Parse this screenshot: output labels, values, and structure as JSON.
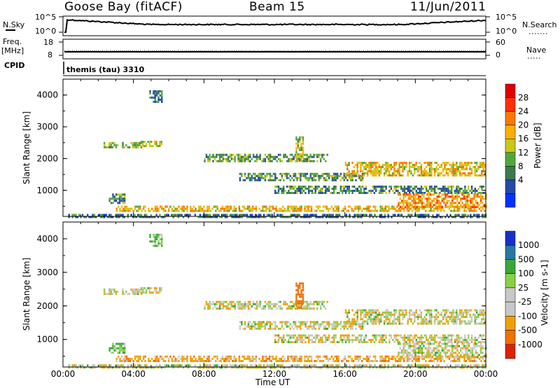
{
  "header": {
    "station": "Goose Bay (fitACF)",
    "beam": "Beam 15",
    "date": "11/Jun/2011"
  },
  "noise_panel": {
    "left_label": "N.Sky",
    "right_label": "N.Search",
    "left_ticks": [
      "10^5",
      "10^0"
    ],
    "right_ticks": [
      "10^5",
      "10^0"
    ]
  },
  "freq_panel": {
    "left_label_1": "Freq.",
    "left_label_2": "[MHz]",
    "right_label": "Nave",
    "left_ticks": [
      "18",
      "8"
    ],
    "right_ticks": [
      "60",
      "0"
    ]
  },
  "cpid_panel": {
    "label": "CPID",
    "text": "themis (tau) 3310"
  },
  "power_panel": {
    "ylabel": "Slant Range [km]",
    "yticks": [
      "4000",
      "3000",
      "2000",
      "1000"
    ],
    "colorbar_label": "Power [dB]",
    "colorbar_ticks": [
      "28",
      "24",
      "20",
      "16",
      "12",
      "8",
      "4"
    ],
    "colors": [
      "#0033ff",
      "#2848a8",
      "#3c7850",
      "#50a83c",
      "#c8c818",
      "#ffb000",
      "#ff7800",
      "#ff3000",
      "#e00000"
    ]
  },
  "velocity_panel": {
    "ylabel": "Slant Range [km]",
    "yticks": [
      "4000",
      "3000",
      "2000",
      "1000"
    ],
    "colorbar_label": "Velocity [m s-1]",
    "colorbar_ticks": [
      "1000",
      "500",
      "100",
      "25",
      "-25",
      "-100",
      "-500",
      "-1000"
    ],
    "colors": [
      "#1830c8",
      "#2878a0",
      "#38a838",
      "#88d048",
      "#c8c8c8",
      "#c8c8c8",
      "#f0a000",
      "#f07000",
      "#e02000"
    ]
  },
  "xaxis": {
    "label": "Time UT",
    "ticks": [
      "00:00",
      "04:00",
      "08:00",
      "12:00",
      "16:00",
      "20:00",
      "00:00"
    ]
  },
  "chart_data": {
    "type": "heatmap",
    "panels": [
      "power",
      "velocity"
    ],
    "x_range_hours": [
      0,
      24
    ],
    "y_range_km": [
      180,
      4500
    ],
    "echo_bands": [
      {
        "t0": 2.3,
        "t1": 4.4,
        "r0": 2380,
        "r1": 2520,
        "power": 14,
        "velocity": 0
      },
      {
        "t0": 4.4,
        "t1": 5.6,
        "r0": 2420,
        "r1": 2560,
        "power": 16,
        "velocity": 0
      },
      {
        "t0": 4.9,
        "t1": 5.6,
        "r0": 3800,
        "r1": 4150,
        "power": 8,
        "velocity": 50
      },
      {
        "t0": 3.0,
        "t1": 24.0,
        "r0": 380,
        "r1": 520,
        "power": 18,
        "velocity": -60
      },
      {
        "t0": 0.3,
        "t1": 24.0,
        "r0": 180,
        "r1": 260,
        "power": 8,
        "velocity": 0
      },
      {
        "t0": 2.6,
        "t1": 3.5,
        "r0": 600,
        "r1": 900,
        "power": 10,
        "velocity": 80
      },
      {
        "t0": 8.0,
        "t1": 15.0,
        "r0": 1950,
        "r1": 2150,
        "power": 12,
        "velocity": 0
      },
      {
        "t0": 10.0,
        "t1": 17.0,
        "r0": 1300,
        "r1": 1550,
        "power": 11,
        "velocity": 0
      },
      {
        "t0": 12.0,
        "t1": 24.0,
        "r0": 900,
        "r1": 1150,
        "power": 10,
        "velocity": 0
      },
      {
        "t0": 16.0,
        "t1": 24.0,
        "r0": 1450,
        "r1": 1900,
        "power": 18,
        "velocity": 0
      },
      {
        "t0": 19.0,
        "t1": 24.0,
        "r0": 500,
        "r1": 900,
        "power": 20,
        "velocity": 0
      },
      {
        "t0": 13.2,
        "t1": 13.6,
        "r0": 1950,
        "r1": 2700,
        "power": 14,
        "velocity": -300
      }
    ]
  }
}
